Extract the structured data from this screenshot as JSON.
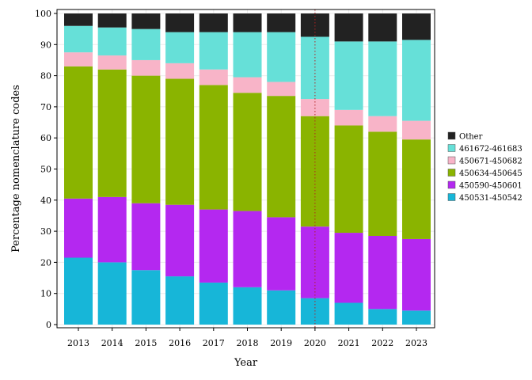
{
  "chart_data": {
    "type": "bar",
    "stacked": true,
    "xlabel": "Year",
    "ylabel": "Percentage nomenclature codes",
    "ylim": [
      0,
      100
    ],
    "yticks": [
      0,
      10,
      20,
      30,
      40,
      50,
      60,
      70,
      80,
      90,
      100
    ],
    "grid": true,
    "legend_position": "right",
    "categories": [
      "2013",
      "2014",
      "2015",
      "2016",
      "2017",
      "2018",
      "2019",
      "2020",
      "2021",
      "2022",
      "2023"
    ],
    "reference_line": {
      "x": "2020",
      "color": "#b22222",
      "style": "dotted"
    },
    "series": [
      {
        "name": "450531-450542",
        "color": "#17b6d8",
        "values": [
          21.5,
          20.0,
          17.5,
          15.5,
          13.5,
          12.0,
          11.0,
          8.5,
          7.0,
          5.0,
          4.5
        ]
      },
      {
        "name": "450590-450601",
        "color": "#b428f0",
        "values": [
          19.0,
          21.0,
          21.5,
          23.0,
          23.5,
          24.5,
          23.5,
          23.0,
          22.5,
          23.5,
          23.0
        ]
      },
      {
        "name": "450634-450645",
        "color": "#8ab400",
        "values": [
          42.5,
          41.0,
          41.0,
          40.5,
          40.0,
          38.0,
          39.0,
          35.5,
          34.5,
          33.5,
          32.0
        ]
      },
      {
        "name": "450671-450682",
        "color": "#f8b4c8",
        "values": [
          4.5,
          4.5,
          5.0,
          5.0,
          5.0,
          5.0,
          4.5,
          5.5,
          5.0,
          5.0,
          6.0
        ]
      },
      {
        "name": "461672-461683",
        "color": "#66e0d8",
        "values": [
          8.5,
          9.0,
          10.0,
          10.0,
          12.0,
          14.5,
          16.0,
          20.0,
          22.0,
          24.0,
          26.0
        ]
      },
      {
        "name": "Other",
        "color": "#222222",
        "values": [
          4.0,
          4.5,
          5.0,
          6.0,
          6.0,
          6.0,
          6.0,
          7.5,
          9.0,
          9.0,
          8.5
        ]
      }
    ],
    "legend_order": [
      "Other",
      "461672-461683",
      "450671-450682",
      "450634-450645",
      "450590-450601",
      "450531-450542"
    ]
  }
}
